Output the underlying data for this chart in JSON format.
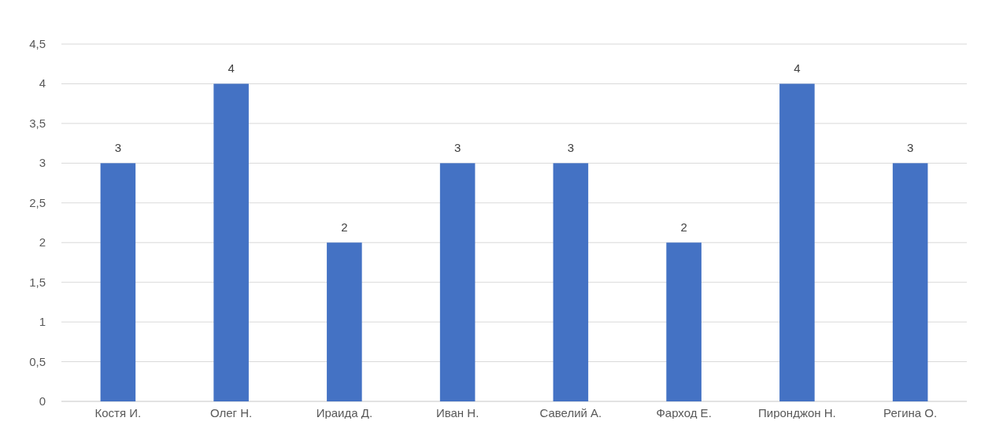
{
  "chart_data": {
    "type": "bar",
    "categories": [
      "Костя И.",
      "Олег Н.",
      "Ираида Д.",
      "Иван Н.",
      "Савелий А.",
      "Фарход Е.",
      "Пиронджон Н.",
      "Регина О."
    ],
    "values": [
      3,
      4,
      2,
      3,
      3,
      2,
      4,
      3
    ],
    "color": "#4472c4",
    "ylim": [
      0,
      4.5
    ],
    "yticks": [
      0,
      {
        "value": 0.5,
        "label": "0,5"
      },
      1,
      {
        "value": 1.5,
        "label": "1,5"
      },
      2,
      {
        "value": 2.5,
        "label": "2,5"
      },
      3,
      {
        "value": 3.5,
        "label": "3,5"
      },
      4,
      {
        "value": 4.5,
        "label": "4,5"
      }
    ],
    "grid": "y",
    "data_labels": true
  }
}
